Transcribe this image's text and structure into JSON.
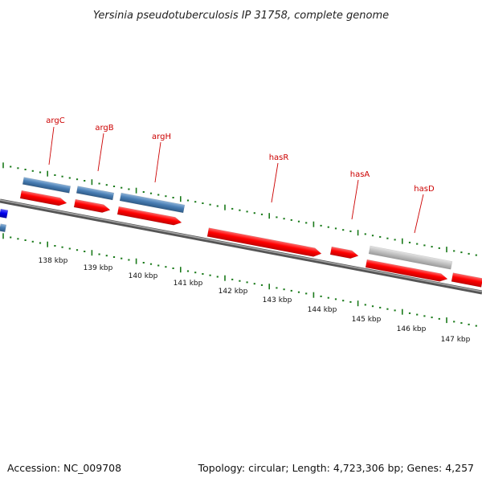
{
  "title": "Yersinia pseudotuberculosis IP 31758, complete genome",
  "accession": "Accession: NC_009708",
  "summary": "Topology: circular; Length: 4,723,306 bp; Genes: 4,257",
  "colors": {
    "backbone": "#7a7a7a",
    "ticks": "#1a7a1a",
    "feature_red": "#ff0000",
    "feature_blue": "#4a7fb5",
    "feature_grey": "#c0c0c0",
    "feature_darkblue": "#0000ee",
    "label": "#cc0000"
  },
  "scale_labels": [
    "138 kbp",
    "139 kbp",
    "140 kbp",
    "141 kbp",
    "142 kbp",
    "143 kbp",
    "144 kbp",
    "145 kbp",
    "146 kbp",
    "147 kbp"
  ],
  "gene_labels": [
    "argC",
    "argB",
    "argH",
    "hasR",
    "hasA",
    "hasD"
  ]
}
